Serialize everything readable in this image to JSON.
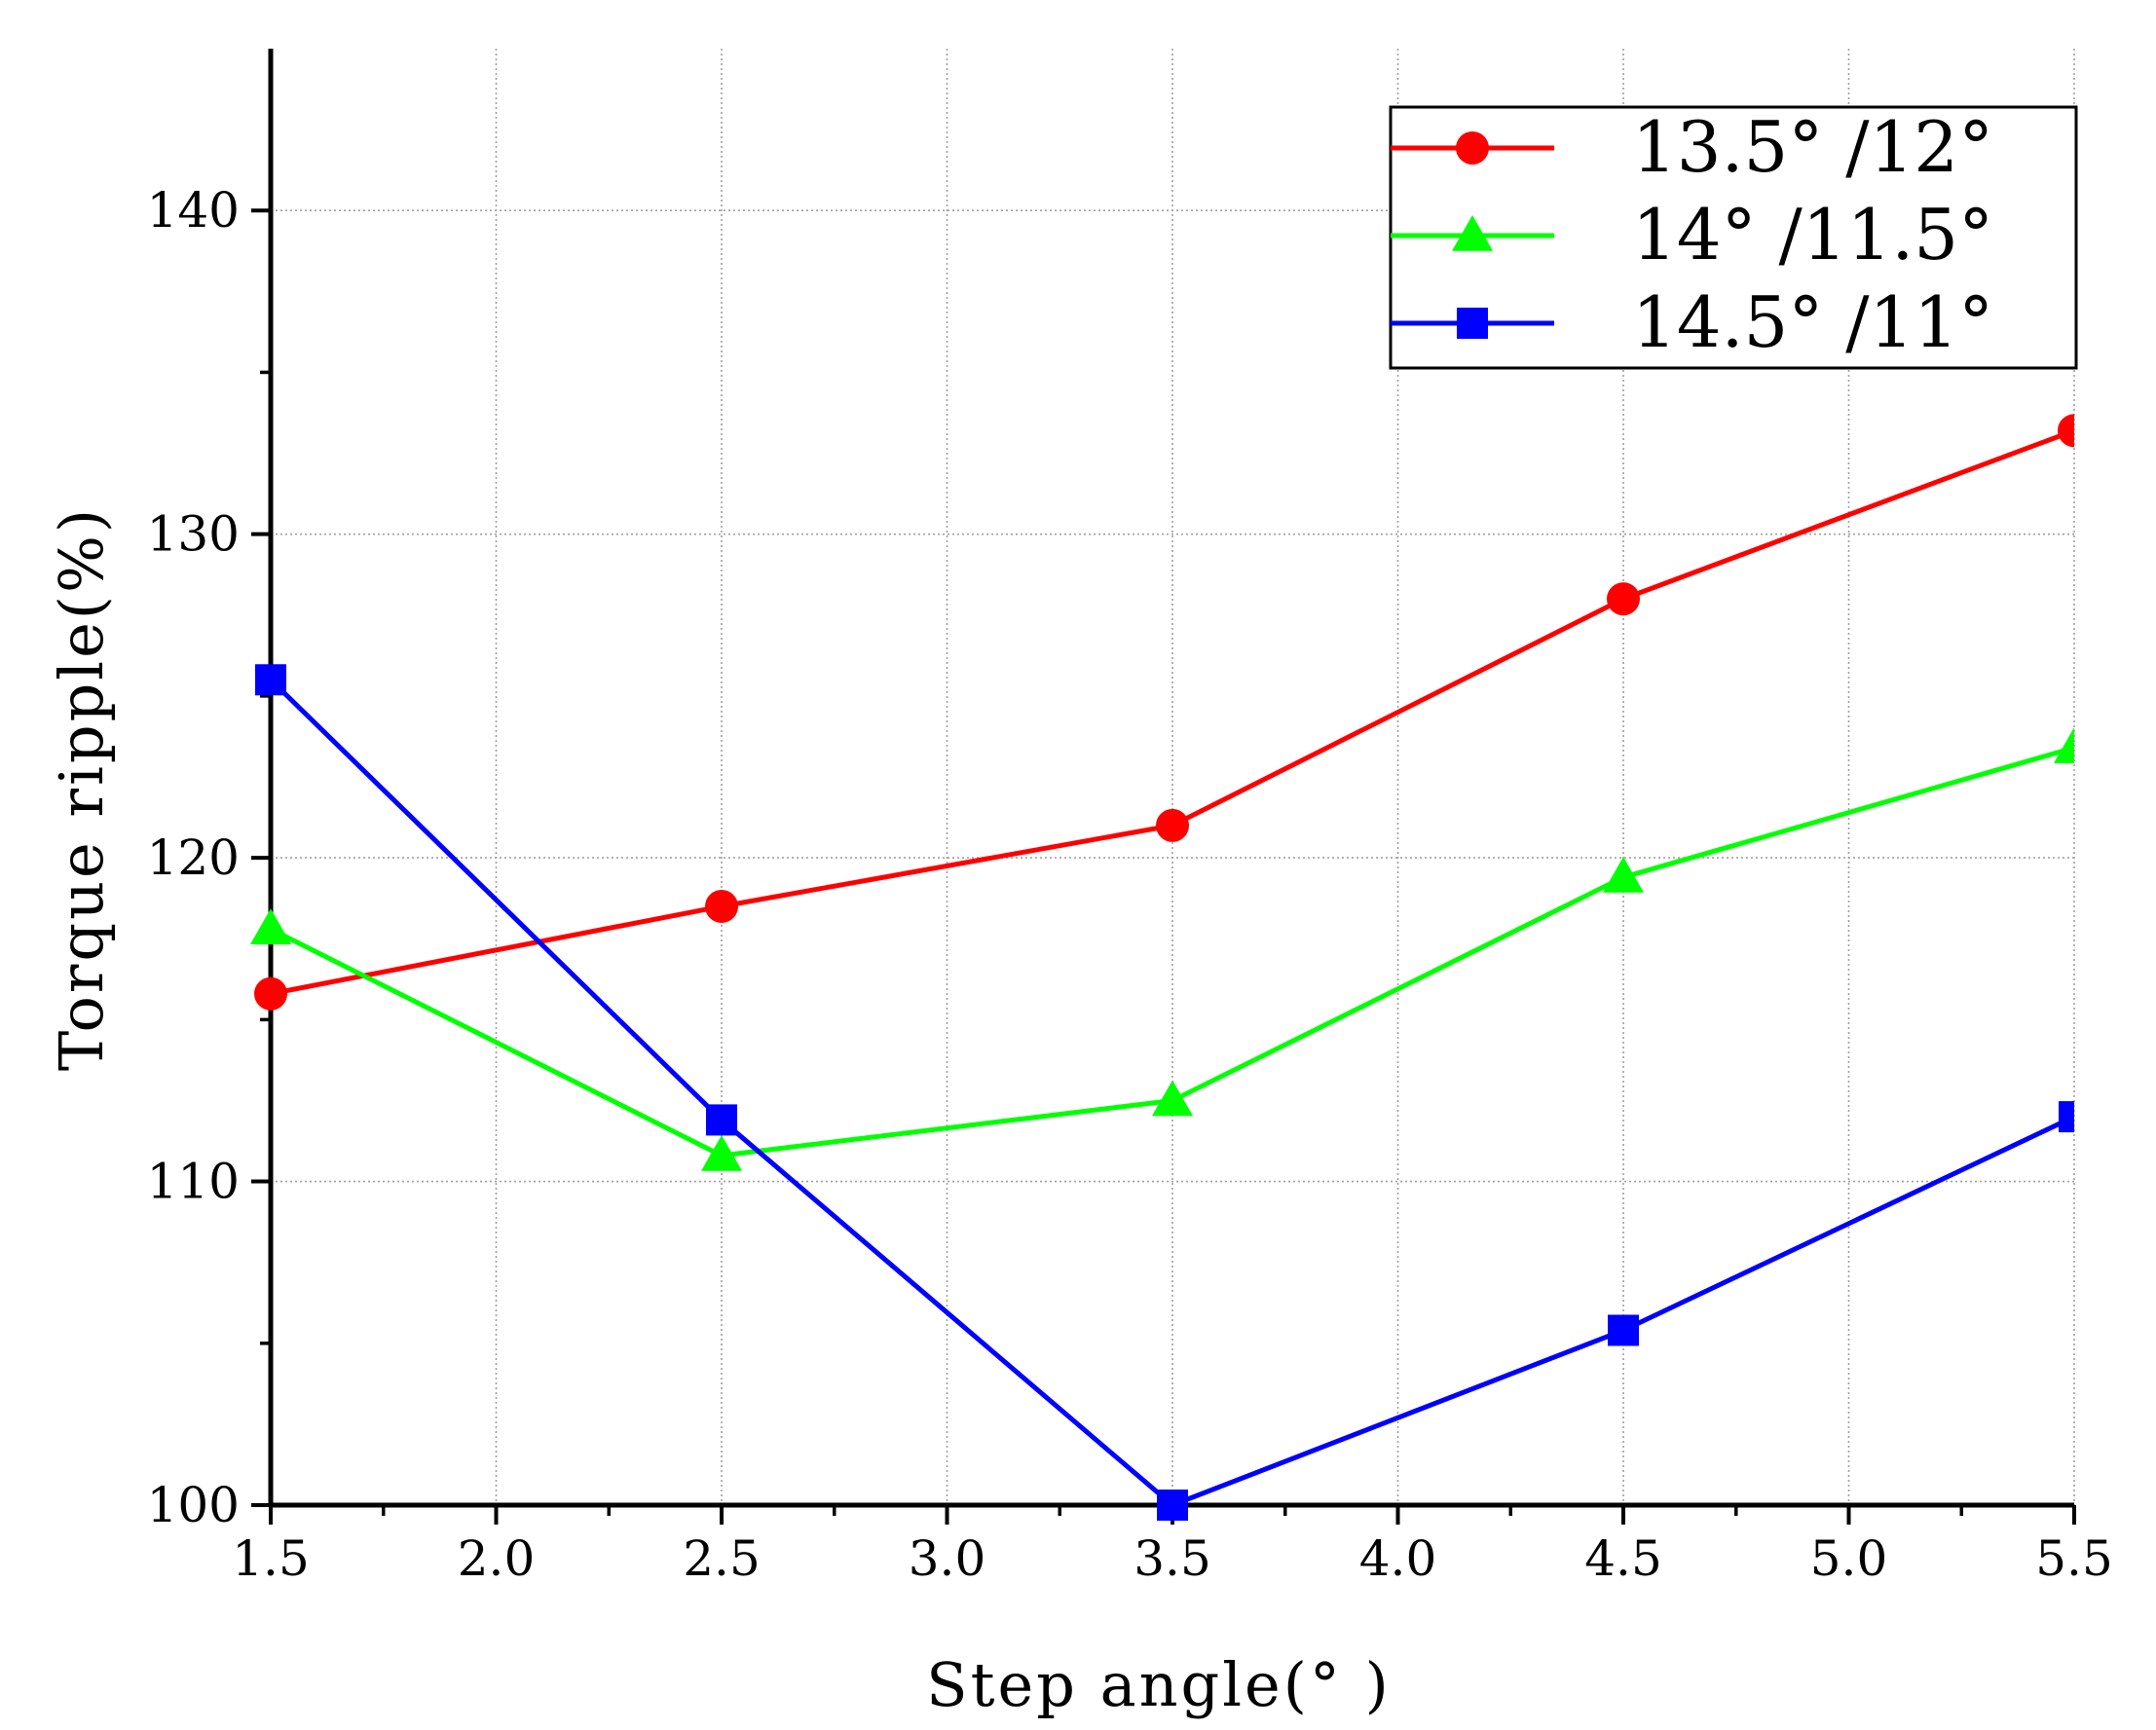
{
  "chart_data": {
    "type": "line",
    "title": "",
    "xlabel": "Step angle(° )",
    "ylabel": "Torque ripple(%)",
    "xlim": [
      1.5,
      5.5
    ],
    "ylim": [
      100,
      145
    ],
    "grid": true,
    "legend_position": "top-right",
    "x_ticks": [
      "1.5",
      "2.0",
      "2.5",
      "3.0",
      "3.5",
      "4.0",
      "4.5",
      "5.0",
      "5.5"
    ],
    "y_ticks": [
      "100",
      "110",
      "120",
      "130",
      "140"
    ],
    "x": [
      1.5,
      2.5,
      3.5,
      4.5,
      5.5
    ],
    "series": [
      {
        "name": "13.5° /12°",
        "color": "#ff0000",
        "marker": "circle",
        "values": [
          115.8,
          118.5,
          121.0,
          128.0,
          133.2
        ]
      },
      {
        "name": "14° /11.5°",
        "color": "#00ff00",
        "marker": "triangle",
        "values": [
          117.8,
          110.8,
          112.5,
          119.4,
          123.4
        ]
      },
      {
        "name": "14.5° /11°",
        "color": "#0000ff",
        "marker": "square",
        "values": [
          125.5,
          111.9,
          100.0,
          105.4,
          112.0
        ]
      }
    ]
  }
}
